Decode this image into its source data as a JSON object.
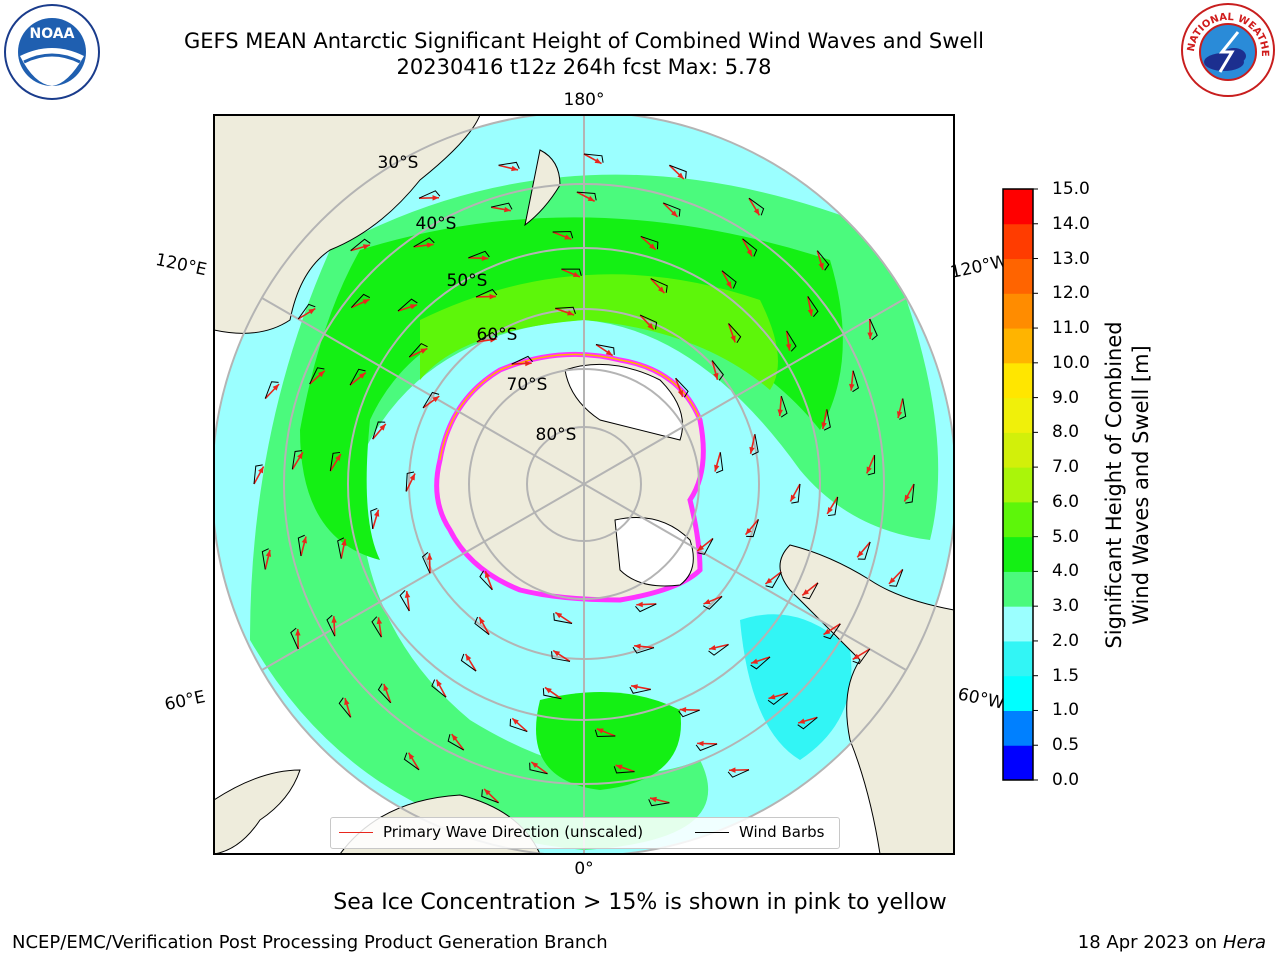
{
  "header": {
    "title_line1": "GEFS MEAN Antarctic Significant Height of Combined Wind Waves and Swell",
    "title_line2": "20230416 t12z 264h fcst   Max: 5.78"
  },
  "map": {
    "projection": "south-polar-stereographic",
    "lon_labels": [
      "180°",
      "120°E",
      "120°W",
      "60°E",
      "60°W",
      "0°"
    ],
    "lat_labels": [
      "30°S",
      "40°S",
      "50°S",
      "60°S",
      "70°S",
      "80°S"
    ],
    "colors": {
      "land": "#eeecdc",
      "ice_shelf": "#ffffff",
      "ocean_0_2": "#9bffff",
      "ocean_3_4": "#4bfa7d",
      "ocean_4_5": "#14f014",
      "ocean_5_6": "#5df60a",
      "sea_ice": "#ff33ff",
      "arrow": "#e8261d",
      "barb": "#000000"
    }
  },
  "colorbar": {
    "title_line1": "Significant Height of Combined",
    "title_line2": "Wind Waves and Swell [m]",
    "ticks": [
      "0.0",
      "0.5",
      "1.0",
      "1.5",
      "2.0",
      "3.0",
      "4.0",
      "5.0",
      "6.0",
      "7.0",
      "8.0",
      "9.0",
      "10.0",
      "11.0",
      "12.0",
      "13.0",
      "14.0",
      "15.0"
    ],
    "colors": [
      "#0000ff",
      "#0080ff",
      "#00ffff",
      "#32f5f5",
      "#9bffff",
      "#4bfa7d",
      "#14f014",
      "#5df60a",
      "#aaf50a",
      "#d2f00a",
      "#f0f00a",
      "#ffe600",
      "#ffb400",
      "#ff8c00",
      "#ff6400",
      "#ff3c00",
      "#ff0000"
    ]
  },
  "legend": {
    "wave_label": "Primary Wave Direction (unscaled)",
    "wind_label": "Wind Barbs"
  },
  "note": "Sea Ice Concentration > 15% is shown in pink to yellow",
  "footer": {
    "left": "NCEP/EMC/Verification Post Processing Product Generation Branch",
    "right_date": "18 Apr 2023 on ",
    "right_host": "Hera"
  },
  "logos": {
    "noaa_text": "NOAA",
    "nws_text": "NATIONAL WEATHER SERVICE"
  }
}
